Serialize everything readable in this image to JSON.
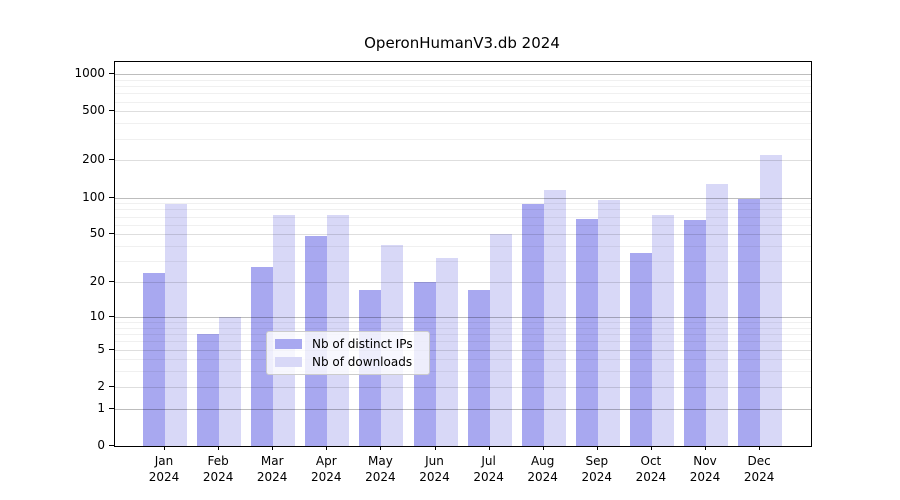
{
  "chart_data": {
    "type": "bar",
    "title": "OperonHumanV3.db 2024",
    "categories": [
      "Jan 2024",
      "Feb 2024",
      "Mar 2024",
      "Apr 2024",
      "May 2024",
      "Jun 2024",
      "Jul 2024",
      "Aug 2024",
      "Sep 2024",
      "Oct 2024",
      "Nov 2024",
      "Dec 2024"
    ],
    "series": [
      {
        "name": "Nb of distinct IPs",
        "color": "#a8a8f0",
        "values": [
          24,
          7,
          27,
          48,
          17,
          20,
          17,
          88,
          67,
          35,
          65,
          97
        ]
      },
      {
        "name": "Nb of downloads",
        "color": "#d8d8f7",
        "values": [
          88,
          10,
          72,
          72,
          41,
          32,
          50,
          116,
          96,
          72,
          130,
          220
        ]
      }
    ],
    "scale": "log1p",
    "y_ticks": [
      0,
      1,
      2,
      5,
      10,
      20,
      50,
      100,
      200,
      500,
      1000
    ],
    "y_minor_ticks": [
      3,
      4,
      6,
      7,
      8,
      9,
      30,
      40,
      60,
      70,
      80,
      90,
      300,
      400,
      600,
      700,
      800,
      900
    ],
    "ylim": [
      0,
      1250
    ],
    "grid": true,
    "legend_position": "lower center"
  }
}
